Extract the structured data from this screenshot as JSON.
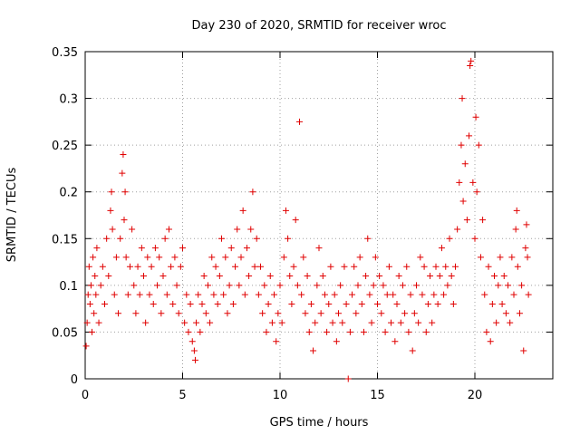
{
  "chart_data": {
    "type": "scatter",
    "title": "Day 230 of 2020, SRMTID for receiver wroc",
    "xlabel": "GPS time / hours",
    "ylabel": "SRMTID / TECUs",
    "xlim": [
      0,
      24
    ],
    "ylim": [
      0,
      0.35
    ],
    "xticks": [
      0,
      5,
      10,
      15,
      20
    ],
    "xtick_labels": [
      "0",
      "5",
      "10",
      "15",
      "20"
    ],
    "yticks": [
      0,
      0.05,
      0.1,
      0.15,
      0.2,
      0.25,
      0.3,
      0.35
    ],
    "ytick_labels": [
      "0",
      "0.05",
      "0.1",
      "0.15",
      "0.2",
      "0.25",
      "0.3",
      "0.35"
    ],
    "grid": true,
    "marker": "+",
    "colors": {
      "marker": "#e00000",
      "grid": "#a0a0a0",
      "axis": "#000000"
    },
    "series": [
      {
        "name": "SRMTID",
        "points": [
          [
            0.05,
            0.035
          ],
          [
            0.1,
            0.06
          ],
          [
            0.15,
            0.09
          ],
          [
            0.2,
            0.12
          ],
          [
            0.25,
            0.08
          ],
          [
            0.3,
            0.1
          ],
          [
            0.35,
            0.05
          ],
          [
            0.4,
            0.13
          ],
          [
            0.45,
            0.07
          ],
          [
            0.5,
            0.11
          ],
          [
            0.55,
            0.09
          ],
          [
            0.6,
            0.14
          ],
          [
            0.7,
            0.06
          ],
          [
            0.8,
            0.1
          ],
          [
            0.9,
            0.12
          ],
          [
            1.0,
            0.08
          ],
          [
            1.1,
            0.15
          ],
          [
            1.2,
            0.11
          ],
          [
            1.3,
            0.18
          ],
          [
            1.35,
            0.2
          ],
          [
            1.4,
            0.16
          ],
          [
            1.5,
            0.09
          ],
          [
            1.6,
            0.13
          ],
          [
            1.7,
            0.07
          ],
          [
            1.8,
            0.15
          ],
          [
            1.9,
            0.22
          ],
          [
            1.95,
            0.24
          ],
          [
            2.0,
            0.17
          ],
          [
            2.05,
            0.2
          ],
          [
            2.1,
            0.13
          ],
          [
            2.2,
            0.09
          ],
          [
            2.3,
            0.12
          ],
          [
            2.4,
            0.16
          ],
          [
            2.5,
            0.1
          ],
          [
            2.6,
            0.07
          ],
          [
            2.7,
            0.12
          ],
          [
            2.8,
            0.09
          ],
          [
            2.9,
            0.14
          ],
          [
            3.0,
            0.11
          ],
          [
            3.1,
            0.06
          ],
          [
            3.2,
            0.13
          ],
          [
            3.3,
            0.09
          ],
          [
            3.4,
            0.12
          ],
          [
            3.5,
            0.08
          ],
          [
            3.6,
            0.14
          ],
          [
            3.7,
            0.1
          ],
          [
            3.8,
            0.13
          ],
          [
            3.9,
            0.07
          ],
          [
            4.0,
            0.11
          ],
          [
            4.1,
            0.15
          ],
          [
            4.2,
            0.09
          ],
          [
            4.3,
            0.16
          ],
          [
            4.4,
            0.12
          ],
          [
            4.5,
            0.08
          ],
          [
            4.6,
            0.13
          ],
          [
            4.7,
            0.1
          ],
          [
            4.8,
            0.07
          ],
          [
            4.9,
            0.12
          ],
          [
            5.0,
            0.14
          ],
          [
            5.1,
            0.06
          ],
          [
            5.2,
            0.09
          ],
          [
            5.3,
            0.05
          ],
          [
            5.4,
            0.08
          ],
          [
            5.5,
            0.04
          ],
          [
            5.6,
            0.03
          ],
          [
            5.65,
            0.02
          ],
          [
            5.7,
            0.06
          ],
          [
            5.8,
            0.09
          ],
          [
            5.9,
            0.05
          ],
          [
            6.0,
            0.08
          ],
          [
            6.1,
            0.11
          ],
          [
            6.2,
            0.07
          ],
          [
            6.3,
            0.1
          ],
          [
            6.4,
            0.06
          ],
          [
            6.5,
            0.13
          ],
          [
            6.6,
            0.09
          ],
          [
            6.7,
            0.12
          ],
          [
            6.8,
            0.08
          ],
          [
            6.9,
            0.11
          ],
          [
            7.0,
            0.15
          ],
          [
            7.1,
            0.09
          ],
          [
            7.2,
            0.13
          ],
          [
            7.3,
            0.07
          ],
          [
            7.4,
            0.1
          ],
          [
            7.5,
            0.14
          ],
          [
            7.6,
            0.08
          ],
          [
            7.7,
            0.12
          ],
          [
            7.8,
            0.16
          ],
          [
            7.9,
            0.1
          ],
          [
            8.0,
            0.13
          ],
          [
            8.1,
            0.18
          ],
          [
            8.2,
            0.09
          ],
          [
            8.3,
            0.14
          ],
          [
            8.4,
            0.11
          ],
          [
            8.5,
            0.16
          ],
          [
            8.6,
            0.2
          ],
          [
            8.7,
            0.12
          ],
          [
            8.8,
            0.15
          ],
          [
            8.9,
            0.09
          ],
          [
            9.0,
            0.12
          ],
          [
            9.1,
            0.07
          ],
          [
            9.2,
            0.1
          ],
          [
            9.3,
            0.05
          ],
          [
            9.4,
            0.08
          ],
          [
            9.5,
            0.11
          ],
          [
            9.6,
            0.06
          ],
          [
            9.7,
            0.09
          ],
          [
            9.8,
            0.04
          ],
          [
            9.9,
            0.07
          ],
          [
            10.0,
            0.1
          ],
          [
            10.1,
            0.06
          ],
          [
            10.2,
            0.13
          ],
          [
            10.3,
            0.18
          ],
          [
            10.4,
            0.15
          ],
          [
            10.5,
            0.11
          ],
          [
            10.6,
            0.08
          ],
          [
            10.7,
            0.12
          ],
          [
            10.8,
            0.17
          ],
          [
            10.9,
            0.1
          ],
          [
            11.0,
            0.275
          ],
          [
            11.1,
            0.09
          ],
          [
            11.2,
            0.13
          ],
          [
            11.3,
            0.07
          ],
          [
            11.4,
            0.11
          ],
          [
            11.5,
            0.05
          ],
          [
            11.6,
            0.08
          ],
          [
            11.7,
            0.03
          ],
          [
            11.8,
            0.06
          ],
          [
            11.9,
            0.1
          ],
          [
            12.0,
            0.14
          ],
          [
            12.1,
            0.07
          ],
          [
            12.2,
            0.11
          ],
          [
            12.3,
            0.09
          ],
          [
            12.4,
            0.05
          ],
          [
            12.5,
            0.08
          ],
          [
            12.6,
            0.12
          ],
          [
            12.7,
            0.06
          ],
          [
            12.8,
            0.09
          ],
          [
            12.9,
            0.04
          ],
          [
            13.0,
            0.07
          ],
          [
            13.1,
            0.1
          ],
          [
            13.2,
            0.06
          ],
          [
            13.3,
            0.12
          ],
          [
            13.4,
            0.08
          ],
          [
            13.5,
            0.0
          ],
          [
            13.6,
            0.05
          ],
          [
            13.7,
            0.09
          ],
          [
            13.8,
            0.12
          ],
          [
            13.9,
            0.07
          ],
          [
            14.0,
            0.1
          ],
          [
            14.1,
            0.13
          ],
          [
            14.2,
            0.08
          ],
          [
            14.3,
            0.05
          ],
          [
            14.4,
            0.11
          ],
          [
            14.5,
            0.15
          ],
          [
            14.6,
            0.09
          ],
          [
            14.7,
            0.06
          ],
          [
            14.8,
            0.1
          ],
          [
            14.9,
            0.13
          ],
          [
            15.0,
            0.08
          ],
          [
            15.1,
            0.11
          ],
          [
            15.2,
            0.07
          ],
          [
            15.3,
            0.1
          ],
          [
            15.4,
            0.05
          ],
          [
            15.5,
            0.09
          ],
          [
            15.6,
            0.12
          ],
          [
            15.7,
            0.06
          ],
          [
            15.8,
            0.09
          ],
          [
            15.9,
            0.04
          ],
          [
            16.0,
            0.08
          ],
          [
            16.1,
            0.11
          ],
          [
            16.2,
            0.06
          ],
          [
            16.3,
            0.1
          ],
          [
            16.4,
            0.07
          ],
          [
            16.5,
            0.12
          ],
          [
            16.6,
            0.05
          ],
          [
            16.7,
            0.09
          ],
          [
            16.8,
            0.03
          ],
          [
            16.9,
            0.07
          ],
          [
            17.0,
            0.1
          ],
          [
            17.1,
            0.06
          ],
          [
            17.2,
            0.13
          ],
          [
            17.3,
            0.09
          ],
          [
            17.4,
            0.12
          ],
          [
            17.5,
            0.05
          ],
          [
            17.6,
            0.08
          ],
          [
            17.7,
            0.11
          ],
          [
            17.8,
            0.06
          ],
          [
            17.9,
            0.09
          ],
          [
            18.0,
            0.12
          ],
          [
            18.1,
            0.08
          ],
          [
            18.2,
            0.11
          ],
          [
            18.3,
            0.14
          ],
          [
            18.4,
            0.09
          ],
          [
            18.5,
            0.12
          ],
          [
            18.6,
            0.1
          ],
          [
            18.7,
            0.15
          ],
          [
            18.8,
            0.11
          ],
          [
            18.9,
            0.08
          ],
          [
            19.0,
            0.12
          ],
          [
            19.1,
            0.16
          ],
          [
            19.2,
            0.21
          ],
          [
            19.3,
            0.25
          ],
          [
            19.35,
            0.3
          ],
          [
            19.4,
            0.19
          ],
          [
            19.5,
            0.23
          ],
          [
            19.6,
            0.17
          ],
          [
            19.7,
            0.26
          ],
          [
            19.75,
            0.335
          ],
          [
            19.8,
            0.34
          ],
          [
            19.9,
            0.21
          ],
          [
            20.0,
            0.15
          ],
          [
            20.05,
            0.28
          ],
          [
            20.1,
            0.2
          ],
          [
            20.2,
            0.25
          ],
          [
            20.3,
            0.13
          ],
          [
            20.4,
            0.17
          ],
          [
            20.5,
            0.09
          ],
          [
            20.6,
            0.05
          ],
          [
            20.7,
            0.12
          ],
          [
            20.8,
            0.04
          ],
          [
            20.9,
            0.08
          ],
          [
            21.0,
            0.11
          ],
          [
            21.1,
            0.06
          ],
          [
            21.2,
            0.1
          ],
          [
            21.3,
            0.13
          ],
          [
            21.4,
            0.08
          ],
          [
            21.5,
            0.11
          ],
          [
            21.6,
            0.07
          ],
          [
            21.7,
            0.1
          ],
          [
            21.8,
            0.06
          ],
          [
            21.9,
            0.13
          ],
          [
            22.0,
            0.09
          ],
          [
            22.1,
            0.16
          ],
          [
            22.15,
            0.18
          ],
          [
            22.2,
            0.12
          ],
          [
            22.3,
            0.07
          ],
          [
            22.4,
            0.1
          ],
          [
            22.5,
            0.03
          ],
          [
            22.6,
            0.14
          ],
          [
            22.65,
            0.165
          ],
          [
            22.7,
            0.13
          ],
          [
            22.75,
            0.09
          ]
        ]
      }
    ]
  }
}
